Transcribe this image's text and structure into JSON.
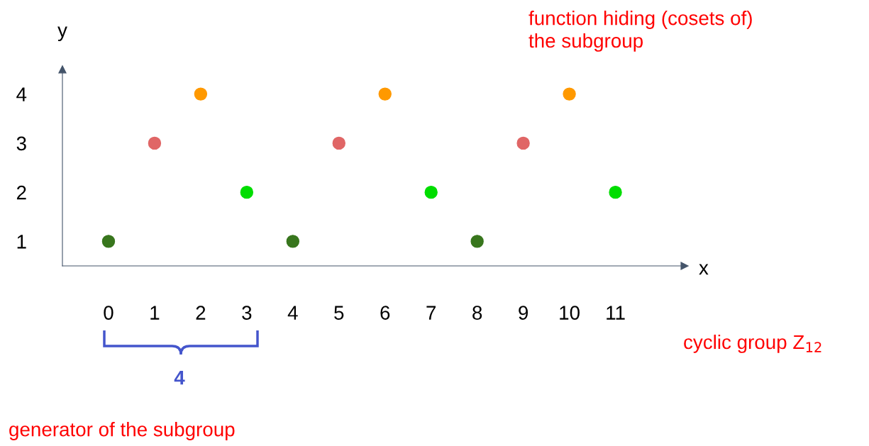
{
  "chart_data": {
    "type": "scatter",
    "x": [
      0,
      1,
      2,
      3,
      4,
      5,
      6,
      7,
      8,
      9,
      10,
      11
    ],
    "series": [
      {
        "values": [
          1,
          3,
          4,
          2,
          1,
          3,
          4,
          2,
          1,
          3,
          4,
          2
        ],
        "colors": [
          "#38761d",
          "#e06666",
          "#ff9900",
          "#00dd00",
          "#38761d",
          "#e06666",
          "#ff9900",
          "#00dd00",
          "#38761d",
          "#e06666",
          "#ff9900",
          "#00dd00"
        ]
      }
    ],
    "xlim": [
      -1,
      12.5
    ],
    "ylim": [
      0.5,
      4.5
    ],
    "xticks": [
      0,
      1,
      2,
      3,
      4,
      5,
      6,
      7,
      8,
      9,
      10,
      11
    ],
    "yticks": [
      1,
      2,
      3,
      4
    ],
    "xlabel": "x",
    "ylabel": "y",
    "marker": "circle",
    "grid": false,
    "legend": false,
    "annotations": [
      "function hiding (cosets of)\nthe subgroup",
      "cyclic group Z$_{12}$",
      "4",
      "generator of the subgroup"
    ]
  }
}
